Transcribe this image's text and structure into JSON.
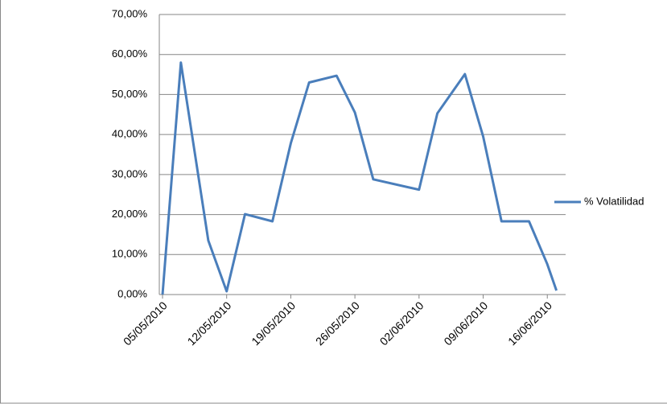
{
  "chart_data": {
    "type": "line",
    "x": [
      "05/05/2010",
      "07/05/2010",
      "10/05/2010",
      "12/05/2010",
      "14/05/2010",
      "17/05/2010",
      "19/05/2010",
      "21/05/2010",
      "24/05/2010",
      "26/05/2010",
      "28/05/2010",
      "02/06/2010",
      "04/06/2010",
      "07/06/2010",
      "09/06/2010",
      "11/06/2010",
      "14/06/2010",
      "16/06/2010",
      "17/06/2010"
    ],
    "series": [
      {
        "name": "% Volatilidad",
        "color": "#4a7ebb",
        "values": [
          0,
          58.0,
          13.5,
          0.8,
          20.1,
          18.3,
          37.8,
          53.0,
          54.7,
          45.5,
          28.8,
          26.2,
          45.3,
          55.1,
          39.5,
          18.3,
          18.3,
          7.6,
          1.0
        ]
      }
    ],
    "xlim": [
      "05/05/2010",
      "18/06/2010"
    ],
    "xticks": [
      "05/05/2010",
      "12/05/2010",
      "19/05/2010",
      "26/05/2010",
      "02/06/2010",
      "09/06/2010",
      "16/06/2010"
    ],
    "ylim": [
      0,
      70
    ],
    "yticks": [
      {
        "value": 0,
        "label": "0,00%"
      },
      {
        "value": 10,
        "label": "10,00%"
      },
      {
        "value": 20,
        "label": "20,00%"
      },
      {
        "value": 30,
        "label": "30,00%"
      },
      {
        "value": 40,
        "label": "40,00%"
      },
      {
        "value": 50,
        "label": "50,00%"
      },
      {
        "value": 60,
        "label": "60,00%"
      },
      {
        "value": 70,
        "label": "70,00%"
      }
    ],
    "grid": true,
    "legend": "right"
  }
}
